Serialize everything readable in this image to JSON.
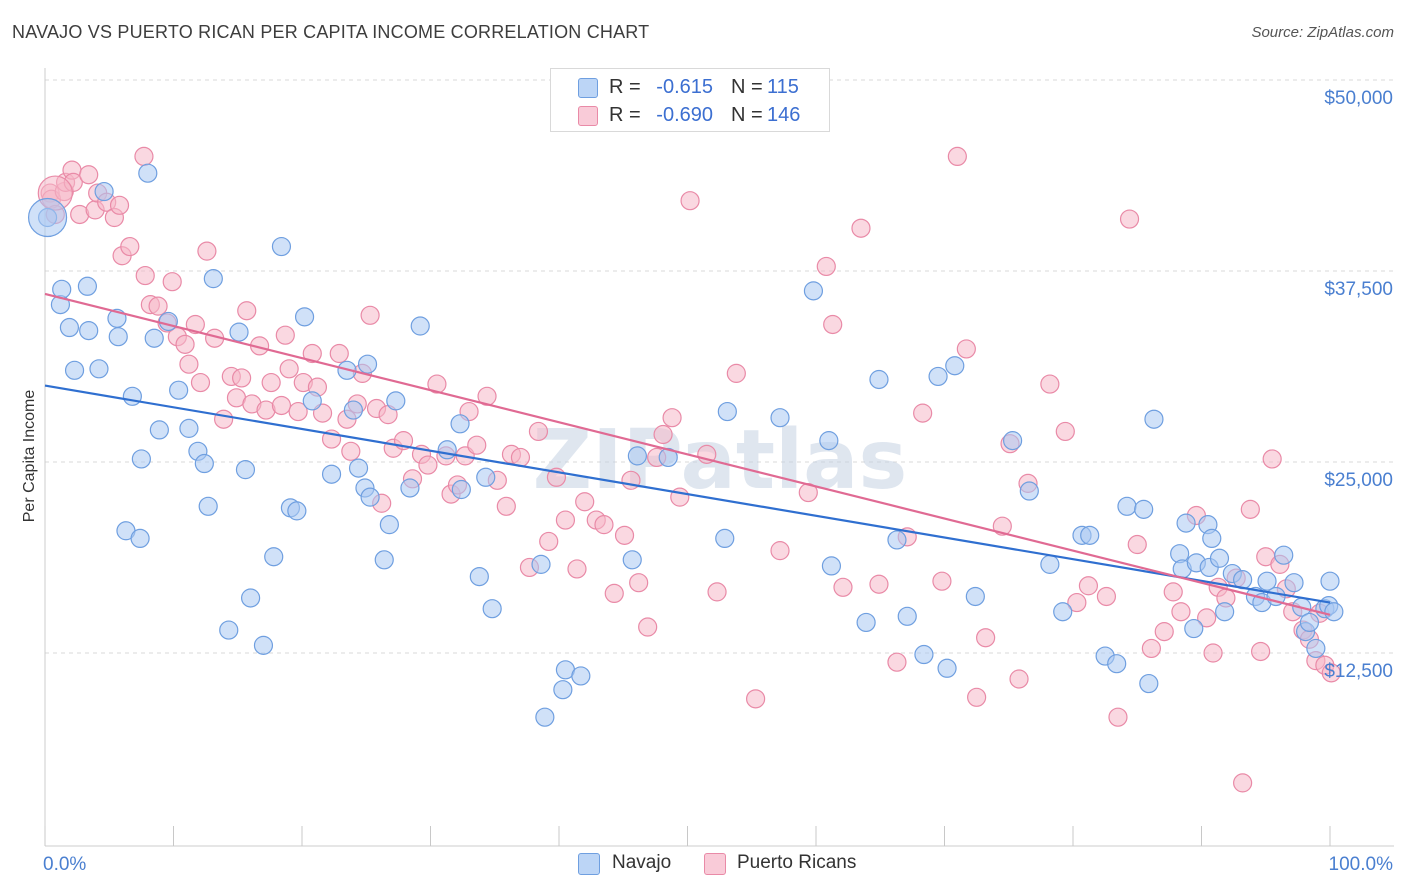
{
  "header": {
    "title": "NAVAJO VS PUERTO RICAN PER CAPITA INCOME CORRELATION CHART",
    "source": "Source: ZipAtlas.com"
  },
  "legend": {
    "rows": [
      {
        "r_label": "R =",
        "r_value": "-0.615",
        "n_label": "N =",
        "n_value": "115"
      },
      {
        "r_label": "R =",
        "r_value": "-0.690",
        "n_label": "N =",
        "n_value": "146"
      }
    ]
  },
  "bottom_legend": {
    "items": [
      {
        "label": "Navajo",
        "color": "#a9c8f3"
      },
      {
        "label": "Puerto Ricans",
        "color": "#f6b8c9"
      }
    ]
  },
  "watermark": "ZIPatlas",
  "colors": {
    "navajo_fill": "#a9c8f3",
    "navajo_stroke": "#6f9fe0",
    "navajo_line": "#2f6fd0",
    "pr_fill": "#f6b8c9",
    "pr_stroke": "#e98aa7",
    "pr_line": "#e06a93",
    "tick_text": "#4a7fd0",
    "grid": "#d8d8d8"
  },
  "chart_data": {
    "type": "scatter",
    "ylabel": "Per Capita Income",
    "xlim": [
      0,
      100
    ],
    "ylim": [
      0,
      52000
    ],
    "x_ticks": [
      {
        "value": 0,
        "label": "0.0%"
      },
      {
        "value": 100,
        "label": "100.0%"
      }
    ],
    "y_ticks": [
      {
        "value": 12500,
        "label": "$12,500"
      },
      {
        "value": 25000,
        "label": "$25,000"
      },
      {
        "value": 37500,
        "label": "$37,500"
      },
      {
        "value": 50000,
        "label": "$50,000"
      }
    ],
    "grid": "horizontal dashed",
    "legend_position": "top-center",
    "series": [
      {
        "name": "Navajo",
        "trend": {
          "x": [
            0,
            100
          ],
          "y": [
            30000,
            15800
          ]
        },
        "points": [
          [
            0.2,
            41000
          ],
          [
            1.2,
            35300
          ],
          [
            1.3,
            36300
          ],
          [
            1.9,
            33800
          ],
          [
            2.3,
            31000
          ],
          [
            3.3,
            36500
          ],
          [
            3.4,
            33600
          ],
          [
            4.2,
            31100
          ],
          [
            4.6,
            42700
          ],
          [
            5.6,
            34400
          ],
          [
            5.7,
            33200
          ],
          [
            6.3,
            20500
          ],
          [
            6.8,
            29300
          ],
          [
            7.4,
            20000
          ],
          [
            7.5,
            25200
          ],
          [
            8.0,
            43900
          ],
          [
            8.5,
            33100
          ],
          [
            8.9,
            27100
          ],
          [
            9.6,
            34200
          ],
          [
            10.4,
            29700
          ],
          [
            11.2,
            27200
          ],
          [
            11.9,
            25700
          ],
          [
            12.4,
            24900
          ],
          [
            12.7,
            22100
          ],
          [
            13.1,
            37000
          ],
          [
            14.3,
            14000
          ],
          [
            15.1,
            33500
          ],
          [
            15.6,
            24500
          ],
          [
            16.0,
            16100
          ],
          [
            17.0,
            13000
          ],
          [
            17.8,
            18800
          ],
          [
            18.4,
            39100
          ],
          [
            19.1,
            22000
          ],
          [
            19.6,
            21800
          ],
          [
            20.2,
            34500
          ],
          [
            20.8,
            29000
          ],
          [
            22.3,
            24200
          ],
          [
            23.5,
            31000
          ],
          [
            24.0,
            28400
          ],
          [
            24.4,
            24600
          ],
          [
            24.9,
            23300
          ],
          [
            25.1,
            31400
          ],
          [
            25.3,
            22700
          ],
          [
            26.4,
            18600
          ],
          [
            26.8,
            20900
          ],
          [
            27.3,
            29000
          ],
          [
            28.4,
            23300
          ],
          [
            29.2,
            33900
          ],
          [
            31.3,
            25800
          ],
          [
            32.3,
            27500
          ],
          [
            32.4,
            23200
          ],
          [
            33.8,
            17500
          ],
          [
            34.3,
            24000
          ],
          [
            34.8,
            15400
          ],
          [
            38.6,
            18300
          ],
          [
            38.9,
            8300
          ],
          [
            40.3,
            10100
          ],
          [
            40.5,
            11400
          ],
          [
            41.7,
            11000
          ],
          [
            45.7,
            18600
          ],
          [
            46.1,
            25400
          ],
          [
            48.5,
            25300
          ],
          [
            52.9,
            20000
          ],
          [
            53.1,
            28300
          ],
          [
            57.2,
            27900
          ],
          [
            59.8,
            36200
          ],
          [
            61.0,
            26400
          ],
          [
            61.2,
            18200
          ],
          [
            63.9,
            14500
          ],
          [
            64.9,
            30400
          ],
          [
            66.3,
            19900
          ],
          [
            67.1,
            14900
          ],
          [
            68.4,
            12400
          ],
          [
            69.5,
            30600
          ],
          [
            70.2,
            11500
          ],
          [
            70.8,
            31300
          ],
          [
            72.4,
            16200
          ],
          [
            75.3,
            26400
          ],
          [
            76.6,
            23100
          ],
          [
            78.2,
            18300
          ],
          [
            79.2,
            15200
          ],
          [
            80.7,
            20200
          ],
          [
            81.3,
            20200
          ],
          [
            82.5,
            12300
          ],
          [
            83.4,
            11800
          ],
          [
            84.2,
            22100
          ],
          [
            85.5,
            21900
          ],
          [
            85.9,
            10500
          ],
          [
            86.3,
            27800
          ],
          [
            88.3,
            19000
          ],
          [
            88.5,
            18000
          ],
          [
            88.8,
            21000
          ],
          [
            89.4,
            14100
          ],
          [
            89.6,
            18400
          ],
          [
            90.5,
            20900
          ],
          [
            90.6,
            18100
          ],
          [
            90.8,
            20000
          ],
          [
            91.4,
            18700
          ],
          [
            91.8,
            15200
          ],
          [
            92.4,
            17700
          ],
          [
            93.2,
            17300
          ],
          [
            94.2,
            16200
          ],
          [
            94.7,
            15800
          ],
          [
            95.1,
            17200
          ],
          [
            95.8,
            16200
          ],
          [
            96.4,
            18900
          ],
          [
            97.2,
            17100
          ],
          [
            97.8,
            15500
          ],
          [
            98.1,
            13900
          ],
          [
            98.4,
            14500
          ],
          [
            98.9,
            12800
          ],
          [
            99.6,
            15400
          ],
          [
            99.9,
            15600
          ],
          [
            100.0,
            17200
          ],
          [
            100.3,
            15200
          ]
        ]
      },
      {
        "name": "Puerto Ricans",
        "trend": {
          "x": [
            0,
            100
          ],
          "y": [
            36000,
            15000
          ]
        },
        "points": [
          [
            0.4,
            42600
          ],
          [
            0.5,
            42200
          ],
          [
            0.8,
            41200
          ],
          [
            1.5,
            42700
          ],
          [
            1.6,
            43300
          ],
          [
            2.1,
            44100
          ],
          [
            2.2,
            43300
          ],
          [
            2.7,
            41200
          ],
          [
            3.4,
            43800
          ],
          [
            3.9,
            41500
          ],
          [
            4.1,
            42600
          ],
          [
            4.8,
            42000
          ],
          [
            5.4,
            41000
          ],
          [
            5.8,
            41800
          ],
          [
            6.0,
            38500
          ],
          [
            6.6,
            39100
          ],
          [
            7.7,
            45000
          ],
          [
            7.8,
            37200
          ],
          [
            8.2,
            35300
          ],
          [
            8.8,
            35200
          ],
          [
            9.5,
            34100
          ],
          [
            9.9,
            36800
          ],
          [
            10.3,
            33200
          ],
          [
            10.9,
            32700
          ],
          [
            11.2,
            31400
          ],
          [
            11.7,
            34000
          ],
          [
            12.1,
            30200
          ],
          [
            12.6,
            38800
          ],
          [
            13.2,
            33100
          ],
          [
            13.9,
            27800
          ],
          [
            14.5,
            30600
          ],
          [
            14.9,
            29200
          ],
          [
            15.3,
            30500
          ],
          [
            15.7,
            34900
          ],
          [
            16.1,
            28800
          ],
          [
            16.7,
            32600
          ],
          [
            17.2,
            28400
          ],
          [
            17.6,
            30200
          ],
          [
            18.4,
            28700
          ],
          [
            18.7,
            33300
          ],
          [
            19.0,
            31100
          ],
          [
            19.7,
            28300
          ],
          [
            20.1,
            30200
          ],
          [
            20.8,
            32100
          ],
          [
            21.2,
            29900
          ],
          [
            21.6,
            28200
          ],
          [
            22.3,
            26500
          ],
          [
            22.9,
            32100
          ],
          [
            23.5,
            27800
          ],
          [
            23.8,
            25700
          ],
          [
            24.3,
            28800
          ],
          [
            24.7,
            30800
          ],
          [
            25.3,
            34600
          ],
          [
            25.8,
            28500
          ],
          [
            26.2,
            22300
          ],
          [
            26.7,
            28100
          ],
          [
            27.1,
            25900
          ],
          [
            27.9,
            26400
          ],
          [
            28.6,
            23900
          ],
          [
            29.3,
            25500
          ],
          [
            29.8,
            24800
          ],
          [
            30.5,
            30100
          ],
          [
            31.2,
            25400
          ],
          [
            31.6,
            22900
          ],
          [
            32.1,
            23500
          ],
          [
            32.7,
            25400
          ],
          [
            33.0,
            28300
          ],
          [
            33.6,
            26100
          ],
          [
            34.4,
            29300
          ],
          [
            35.2,
            23800
          ],
          [
            35.9,
            22100
          ],
          [
            36.3,
            25500
          ],
          [
            37.0,
            25300
          ],
          [
            37.7,
            18100
          ],
          [
            38.4,
            27000
          ],
          [
            39.2,
            19800
          ],
          [
            39.8,
            24000
          ],
          [
            40.5,
            21200
          ],
          [
            41.4,
            18000
          ],
          [
            42.0,
            22400
          ],
          [
            42.9,
            21200
          ],
          [
            43.5,
            20900
          ],
          [
            44.3,
            16400
          ],
          [
            45.1,
            20200
          ],
          [
            45.6,
            23800
          ],
          [
            46.2,
            17100
          ],
          [
            46.9,
            14200
          ],
          [
            47.6,
            25300
          ],
          [
            48.1,
            26800
          ],
          [
            48.8,
            27900
          ],
          [
            49.4,
            22700
          ],
          [
            50.2,
            42100
          ],
          [
            51.5,
            25500
          ],
          [
            52.3,
            16500
          ],
          [
            53.8,
            30800
          ],
          [
            55.3,
            9500
          ],
          [
            57.2,
            19200
          ],
          [
            59.4,
            23000
          ],
          [
            60.8,
            37800
          ],
          [
            61.3,
            34000
          ],
          [
            62.1,
            16800
          ],
          [
            63.5,
            40300
          ],
          [
            64.9,
            17000
          ],
          [
            66.3,
            11900
          ],
          [
            67.1,
            20100
          ],
          [
            68.3,
            28200
          ],
          [
            69.8,
            17200
          ],
          [
            71.0,
            45000
          ],
          [
            71.7,
            32400
          ],
          [
            72.5,
            9600
          ],
          [
            73.2,
            13500
          ],
          [
            74.5,
            20800
          ],
          [
            75.1,
            26200
          ],
          [
            75.8,
            10800
          ],
          [
            76.5,
            23600
          ],
          [
            78.2,
            30100
          ],
          [
            79.4,
            27000
          ],
          [
            80.3,
            15800
          ],
          [
            81.2,
            16900
          ],
          [
            82.6,
            16200
          ],
          [
            83.5,
            8300
          ],
          [
            84.4,
            40900
          ],
          [
            85.0,
            19600
          ],
          [
            86.1,
            12800
          ],
          [
            87.1,
            13900
          ],
          [
            87.8,
            16500
          ],
          [
            88.4,
            15200
          ],
          [
            89.6,
            21500
          ],
          [
            90.4,
            14800
          ],
          [
            90.9,
            12500
          ],
          [
            91.3,
            16800
          ],
          [
            91.9,
            16100
          ],
          [
            92.7,
            17400
          ],
          [
            93.2,
            4000
          ],
          [
            93.8,
            21900
          ],
          [
            94.6,
            12600
          ],
          [
            95.0,
            18800
          ],
          [
            95.5,
            25200
          ],
          [
            96.1,
            18300
          ],
          [
            96.6,
            16700
          ],
          [
            97.1,
            15200
          ],
          [
            97.9,
            14000
          ],
          [
            98.4,
            13400
          ],
          [
            98.9,
            12000
          ],
          [
            99.2,
            15100
          ],
          [
            99.6,
            11700
          ],
          [
            100.1,
            11200
          ]
        ]
      }
    ]
  }
}
